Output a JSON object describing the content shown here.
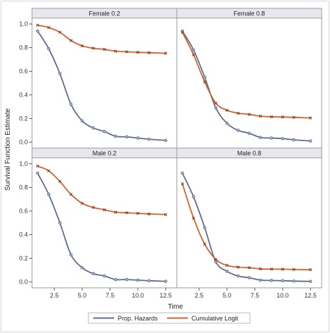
{
  "chart_data": {
    "type": "line",
    "xlabel": "Time",
    "ylabel": "Survival Function Estimate",
    "xlim": [
      0.5,
      13.5
    ],
    "ylim": [
      -0.05,
      1.05
    ],
    "xticks": [
      2.5,
      5.0,
      7.5,
      10.0,
      12.5
    ],
    "xtick_labels": [
      "2.5",
      "5.0",
      "7.5",
      "10.0",
      "12.5"
    ],
    "yticks": [
      0.0,
      0.2,
      0.4,
      0.6,
      0.8,
      1.0
    ],
    "ytick_labels": [
      "0.0",
      "0.2",
      "0.4",
      "0.6",
      "0.8",
      "1.0"
    ],
    "grid": false,
    "legend_position": "bottom",
    "series_styles": [
      {
        "name": "Prop. Hazards",
        "color": "#5b6c8c",
        "marker": "circle"
      },
      {
        "name": "Cumulative Logit",
        "color": "#d8602a",
        "marker": "x"
      }
    ],
    "x": [
      1,
      2,
      3,
      4,
      5,
      6,
      7,
      8,
      9,
      10,
      11,
      12.5
    ],
    "panels": [
      {
        "title": "Female 0.2",
        "series": [
          {
            "name": "Prop. Hazards",
            "values": [
              0.94,
              0.79,
              0.58,
              0.32,
              0.18,
              0.12,
              0.09,
              0.05,
              0.045,
              0.035,
              0.025,
              0.015
            ]
          },
          {
            "name": "Cumulative Logit",
            "values": [
              0.99,
              0.97,
              0.93,
              0.86,
              0.815,
              0.795,
              0.785,
              0.77,
              0.765,
              0.76,
              0.757,
              0.752
            ]
          }
        ]
      },
      {
        "title": "Female 0.8",
        "series": [
          {
            "name": "Prop. Hazards",
            "values": [
              0.94,
              0.78,
              0.55,
              0.29,
              0.16,
              0.1,
              0.075,
              0.04,
              0.035,
              0.03,
              0.02,
              0.01
            ]
          },
          {
            "name": "Cumulative Logit",
            "values": [
              0.93,
              0.74,
              0.51,
              0.33,
              0.27,
              0.245,
              0.235,
              0.22,
              0.215,
              0.213,
              0.21,
              0.205
            ]
          }
        ]
      },
      {
        "title": "Male 0.2",
        "series": [
          {
            "name": "Prop. Hazards",
            "values": [
              0.92,
              0.74,
              0.5,
              0.23,
              0.12,
              0.07,
              0.05,
              0.02,
              0.02,
              0.015,
              0.01,
              0.005
            ]
          },
          {
            "name": "Cumulative Logit",
            "values": [
              0.98,
              0.94,
              0.85,
              0.74,
              0.665,
              0.63,
              0.61,
              0.59,
              0.585,
              0.58,
              0.575,
              0.57
            ]
          }
        ]
      },
      {
        "title": "Male 0.8",
        "series": [
          {
            "name": "Prop. Hazards",
            "values": [
              0.92,
              0.72,
              0.46,
              0.17,
              0.09,
              0.05,
              0.035,
              0.015,
              0.012,
              0.01,
              0.007,
              0.004
            ]
          },
          {
            "name": "Cumulative Logit",
            "values": [
              0.83,
              0.54,
              0.32,
              0.19,
              0.14,
              0.125,
              0.12,
              0.11,
              0.108,
              0.107,
              0.105,
              0.103
            ]
          }
        ]
      }
    ]
  }
}
